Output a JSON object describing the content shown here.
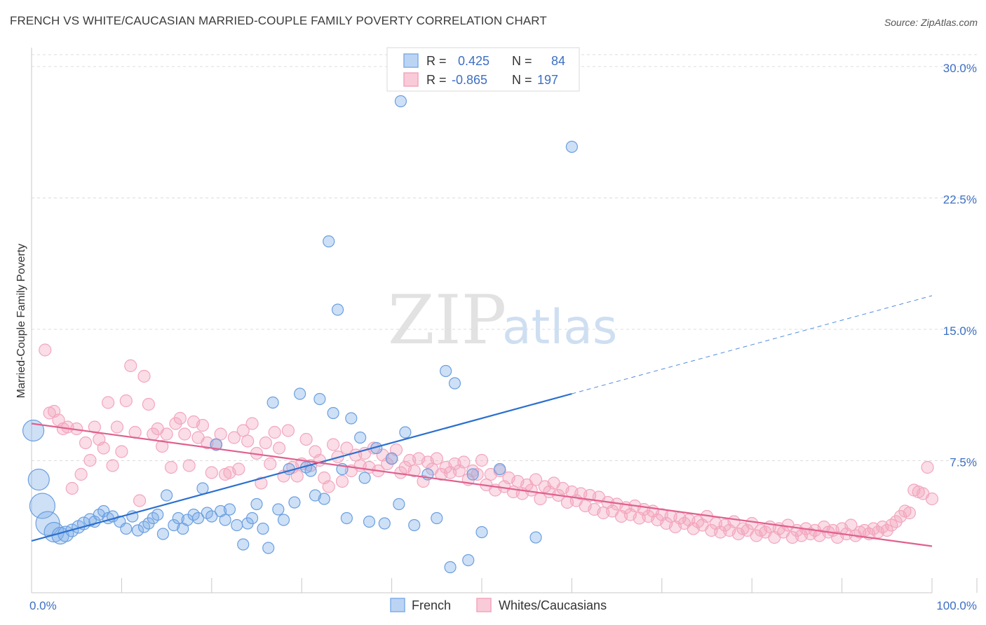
{
  "title": "FRENCH VS WHITE/CAUCASIAN MARRIED-COUPLE FAMILY POVERTY CORRELATION CHART",
  "source": "Source: ZipAtlas.com",
  "watermark": {
    "zip": "ZIP",
    "atlas": "atlas"
  },
  "legend_top": {
    "r_label": "R =",
    "n_label": "N =",
    "rows": [
      {
        "r": "0.425",
        "n": "84"
      },
      {
        "r": "-0.865",
        "n": "197"
      }
    ]
  },
  "chart_data": {
    "type": "scatter",
    "title": "FRENCH VS WHITE/CAUCASIAN MARRIED-COUPLE FAMILY POVERTY CORRELATION CHART",
    "xlabel": "",
    "ylabel": "Married-Couple Family Poverty",
    "xlim": [
      0,
      100
    ],
    "ylim": [
      0,
      30
    ],
    "x_tick_labels": [
      "0.0%",
      "100.0%"
    ],
    "y_ticks": [
      7.5,
      15.0,
      22.5,
      30.0
    ],
    "y_tick_labels": [
      "7.5%",
      "15.0%",
      "22.5%",
      "30.0%"
    ],
    "grid": true,
    "legend_position": "bottom",
    "series": [
      {
        "name": "French",
        "color": "#7eaee8",
        "line_color": "#2a6fd0",
        "r": 0.425,
        "n": 84,
        "trend": {
          "x0": 0,
          "y0": 3.0,
          "x1": 60,
          "y1": 11.4,
          "x_dash_end": 100,
          "y_dash_end": 17.0
        },
        "points": [
          [
            0.2,
            9.3,
            15
          ],
          [
            0.8,
            6.5,
            15
          ],
          [
            1.2,
            5.0,
            18
          ],
          [
            1.8,
            4.0,
            17
          ],
          [
            2.5,
            3.5,
            14
          ],
          [
            3.2,
            3.3,
            12
          ],
          [
            3.8,
            3.4,
            11
          ],
          [
            4.5,
            3.6,
            9
          ],
          [
            5.2,
            3.8,
            9
          ],
          [
            5.8,
            4.0,
            9
          ],
          [
            6.5,
            4.2,
            9
          ],
          [
            7.0,
            4.1,
            8
          ],
          [
            7.5,
            4.5,
            8
          ],
          [
            8.0,
            4.7,
            8
          ],
          [
            8.5,
            4.3,
            8
          ],
          [
            9.0,
            4.4,
            8
          ],
          [
            9.8,
            4.1,
            8
          ],
          [
            10.5,
            3.7,
            8
          ],
          [
            11.2,
            4.4,
            8
          ],
          [
            11.8,
            3.6,
            8
          ],
          [
            12.5,
            3.8,
            8
          ],
          [
            13.0,
            4.0,
            8
          ],
          [
            13.5,
            4.3,
            8
          ],
          [
            14.0,
            4.5,
            8
          ],
          [
            14.6,
            3.4,
            8
          ],
          [
            15.0,
            5.6,
            8
          ],
          [
            15.8,
            3.9,
            8
          ],
          [
            16.3,
            4.3,
            8
          ],
          [
            16.8,
            3.7,
            8
          ],
          [
            17.3,
            4.2,
            8
          ],
          [
            18.0,
            4.5,
            8
          ],
          [
            18.5,
            4.3,
            8
          ],
          [
            19.0,
            6.0,
            8
          ],
          [
            19.5,
            4.6,
            8
          ],
          [
            20.0,
            4.4,
            8
          ],
          [
            20.5,
            8.5,
            8
          ],
          [
            21.0,
            4.7,
            8
          ],
          [
            21.5,
            4.2,
            8
          ],
          [
            22.0,
            4.8,
            8
          ],
          [
            22.8,
            3.9,
            8
          ],
          [
            23.5,
            2.8,
            8
          ],
          [
            24.0,
            4.0,
            8
          ],
          [
            24.5,
            4.3,
            8
          ],
          [
            25.0,
            5.1,
            8
          ],
          [
            25.7,
            3.7,
            8
          ],
          [
            26.3,
            2.6,
            8
          ],
          [
            26.8,
            10.9,
            8
          ],
          [
            27.4,
            4.8,
            8
          ],
          [
            28.0,
            4.2,
            8
          ],
          [
            28.6,
            7.1,
            8
          ],
          [
            29.2,
            5.2,
            8
          ],
          [
            29.8,
            11.4,
            8
          ],
          [
            30.5,
            7.2,
            8
          ],
          [
            31.0,
            7.0,
            8
          ],
          [
            31.5,
            5.6,
            8
          ],
          [
            32.0,
            11.1,
            8
          ],
          [
            32.5,
            5.4,
            8
          ],
          [
            33.0,
            20.1,
            8
          ],
          [
            33.5,
            10.3,
            8
          ],
          [
            34.0,
            16.2,
            8
          ],
          [
            34.5,
            7.1,
            8
          ],
          [
            35.0,
            4.3,
            8
          ],
          [
            35.5,
            10.0,
            8
          ],
          [
            36.5,
            8.9,
            8
          ],
          [
            37.0,
            6.6,
            8
          ],
          [
            37.5,
            4.1,
            8
          ],
          [
            38.3,
            8.3,
            8
          ],
          [
            39.2,
            4.0,
            8
          ],
          [
            40.0,
            7.7,
            8
          ],
          [
            40.8,
            5.1,
            8
          ],
          [
            41.5,
            9.2,
            8
          ],
          [
            41.0,
            28.1,
            8
          ],
          [
            42.5,
            3.9,
            8
          ],
          [
            44.0,
            6.8,
            8
          ],
          [
            45.0,
            4.3,
            8
          ],
          [
            46.0,
            12.7,
            8
          ],
          [
            46.5,
            1.5,
            8
          ],
          [
            47.0,
            12.0,
            8
          ],
          [
            48.5,
            1.9,
            8
          ],
          [
            49.0,
            6.8,
            8
          ],
          [
            50.0,
            3.5,
            8
          ],
          [
            52.0,
            7.1,
            8
          ],
          [
            56.0,
            3.2,
            8
          ],
          [
            60.0,
            25.5,
            8
          ]
        ]
      },
      {
        "name": "Whites/Caucasians",
        "color": "#f3a5be",
        "line_color": "#e0608e",
        "r": -0.865,
        "n": 197,
        "trend": {
          "x0": 0,
          "y0": 9.7,
          "x1": 100,
          "y1": 2.7
        },
        "points": [
          [
            1.5,
            13.9
          ],
          [
            2.0,
            10.3
          ],
          [
            2.5,
            10.4
          ],
          [
            3.0,
            9.9
          ],
          [
            3.5,
            9.4
          ],
          [
            4.0,
            9.5
          ],
          [
            4.5,
            6.0
          ],
          [
            5.0,
            9.4
          ],
          [
            5.5,
            6.8
          ],
          [
            6.0,
            8.6
          ],
          [
            6.5,
            7.6
          ],
          [
            7.0,
            9.5
          ],
          [
            7.5,
            8.8
          ],
          [
            8.0,
            8.3
          ],
          [
            8.5,
            10.9
          ],
          [
            9.0,
            7.3
          ],
          [
            9.5,
            9.5
          ],
          [
            10.0,
            8.1
          ],
          [
            10.5,
            11.0
          ],
          [
            11.0,
            13.0
          ],
          [
            11.5,
            9.2
          ],
          [
            12.0,
            5.3
          ],
          [
            12.5,
            12.4
          ],
          [
            13.0,
            10.8
          ],
          [
            13.5,
            9.1
          ],
          [
            14.0,
            9.4
          ],
          [
            14.5,
            8.4
          ],
          [
            15.0,
            9.1
          ],
          [
            15.5,
            7.2
          ],
          [
            16.0,
            9.7
          ],
          [
            16.5,
            10.0
          ],
          [
            17.0,
            9.1
          ],
          [
            17.5,
            7.3
          ],
          [
            18.0,
            9.8
          ],
          [
            18.5,
            8.9
          ],
          [
            19.0,
            9.6
          ],
          [
            19.5,
            8.6
          ],
          [
            20.0,
            6.9
          ],
          [
            20.5,
            8.5
          ],
          [
            21.0,
            9.1
          ],
          [
            21.5,
            6.8
          ],
          [
            22.0,
            6.9
          ],
          [
            22.5,
            8.9
          ],
          [
            23.0,
            7.1
          ],
          [
            23.5,
            9.3
          ],
          [
            24.0,
            8.7
          ],
          [
            24.5,
            9.7
          ],
          [
            25.0,
            8.0
          ],
          [
            25.5,
            6.3
          ],
          [
            26.0,
            8.6
          ],
          [
            26.5,
            7.4
          ],
          [
            27.0,
            9.2
          ],
          [
            27.5,
            8.3
          ],
          [
            28.0,
            6.7
          ],
          [
            28.5,
            9.3
          ],
          [
            29.0,
            7.2
          ],
          [
            29.5,
            6.7
          ],
          [
            30.0,
            7.4
          ],
          [
            30.5,
            8.8
          ],
          [
            31.0,
            7.3
          ],
          [
            31.5,
            8.1
          ],
          [
            32.0,
            7.6
          ],
          [
            32.5,
            6.6
          ],
          [
            33.0,
            6.1
          ],
          [
            33.5,
            8.5
          ],
          [
            34.0,
            7.8
          ],
          [
            34.5,
            6.4
          ],
          [
            35.0,
            8.3
          ],
          [
            35.5,
            7.0
          ],
          [
            36.0,
            7.9
          ],
          [
            36.5,
            7.3
          ],
          [
            37.0,
            8.0
          ],
          [
            37.5,
            7.2
          ],
          [
            38.0,
            8.3
          ],
          [
            38.5,
            7.0
          ],
          [
            39.0,
            7.9
          ],
          [
            39.5,
            7.4
          ],
          [
            40.0,
            7.7
          ],
          [
            40.5,
            8.2
          ],
          [
            41.0,
            6.9
          ],
          [
            41.5,
            7.2
          ],
          [
            42.0,
            7.6
          ],
          [
            42.5,
            7.0
          ],
          [
            43.0,
            7.7
          ],
          [
            43.5,
            6.4
          ],
          [
            44.0,
            7.5
          ],
          [
            44.5,
            7.1
          ],
          [
            45.0,
            7.7
          ],
          [
            45.5,
            6.8
          ],
          [
            46.0,
            7.2
          ],
          [
            46.5,
            6.9
          ],
          [
            47.0,
            7.4
          ],
          [
            47.5,
            7.0
          ],
          [
            48.0,
            7.5
          ],
          [
            48.5,
            6.5
          ],
          [
            49.0,
            7.0
          ],
          [
            49.5,
            6.8
          ],
          [
            50.0,
            7.6
          ],
          [
            50.5,
            6.2
          ],
          [
            51.0,
            6.8
          ],
          [
            51.5,
            5.9
          ],
          [
            52.0,
            7.0
          ],
          [
            52.5,
            6.1
          ],
          [
            53.0,
            6.6
          ],
          [
            53.5,
            5.8
          ],
          [
            54.0,
            6.4
          ],
          [
            54.5,
            5.7
          ],
          [
            55.0,
            6.2
          ],
          [
            55.5,
            5.9
          ],
          [
            56.0,
            6.5
          ],
          [
            56.5,
            5.4
          ],
          [
            57.0,
            6.1
          ],
          [
            57.5,
            5.8
          ],
          [
            58.0,
            6.3
          ],
          [
            58.5,
            5.6
          ],
          [
            59.0,
            6.0
          ],
          [
            59.5,
            5.2
          ],
          [
            60.0,
            5.8
          ],
          [
            60.5,
            5.3
          ],
          [
            61.0,
            5.7
          ],
          [
            61.5,
            5.0
          ],
          [
            62.0,
            5.6
          ],
          [
            62.5,
            4.8
          ],
          [
            63.0,
            5.5
          ],
          [
            63.5,
            4.6
          ],
          [
            64.0,
            5.2
          ],
          [
            64.5,
            4.7
          ],
          [
            65.0,
            5.1
          ],
          [
            65.5,
            4.4
          ],
          [
            66.0,
            4.9
          ],
          [
            66.5,
            4.5
          ],
          [
            67.0,
            5.0
          ],
          [
            67.5,
            4.3
          ],
          [
            68.0,
            4.8
          ],
          [
            68.5,
            4.4
          ],
          [
            69.0,
            4.7
          ],
          [
            69.5,
            4.2
          ],
          [
            70.0,
            4.5
          ],
          [
            70.5,
            4.0
          ],
          [
            71.0,
            4.4
          ],
          [
            71.5,
            3.8
          ],
          [
            72.0,
            4.3
          ],
          [
            72.5,
            4.0
          ],
          [
            73.0,
            4.2
          ],
          [
            73.5,
            3.7
          ],
          [
            74.0,
            4.1
          ],
          [
            74.5,
            3.9
          ],
          [
            75.0,
            4.4
          ],
          [
            75.5,
            3.6
          ],
          [
            76.0,
            4.0
          ],
          [
            76.5,
            3.5
          ],
          [
            77.0,
            3.9
          ],
          [
            77.5,
            3.6
          ],
          [
            78.0,
            4.1
          ],
          [
            78.5,
            3.4
          ],
          [
            79.0,
            3.7
          ],
          [
            79.5,
            3.6
          ],
          [
            80.0,
            4.0
          ],
          [
            80.5,
            3.3
          ],
          [
            81.0,
            3.6
          ],
          [
            81.5,
            3.5
          ],
          [
            82.0,
            3.8
          ],
          [
            82.5,
            3.2
          ],
          [
            83.0,
            3.7
          ],
          [
            83.5,
            3.5
          ],
          [
            84.0,
            3.9
          ],
          [
            84.5,
            3.2
          ],
          [
            85.0,
            3.6
          ],
          [
            85.5,
            3.3
          ],
          [
            86.0,
            3.7
          ],
          [
            86.5,
            3.4
          ],
          [
            87.0,
            3.6
          ],
          [
            87.5,
            3.3
          ],
          [
            88.0,
            3.8
          ],
          [
            88.5,
            3.5
          ],
          [
            89.0,
            3.6
          ],
          [
            89.5,
            3.2
          ],
          [
            90.0,
            3.7
          ],
          [
            90.5,
            3.4
          ],
          [
            91.0,
            3.9
          ],
          [
            91.5,
            3.3
          ],
          [
            92.0,
            3.5
          ],
          [
            92.5,
            3.6
          ],
          [
            93.0,
            3.4
          ],
          [
            93.5,
            3.7
          ],
          [
            94.0,
            3.5
          ],
          [
            94.5,
            3.8
          ],
          [
            95.0,
            3.6
          ],
          [
            95.5,
            3.9
          ],
          [
            96.0,
            4.1
          ],
          [
            96.5,
            4.4
          ],
          [
            97.0,
            4.7
          ],
          [
            97.5,
            4.6
          ],
          [
            98.0,
            5.9
          ],
          [
            98.5,
            5.8
          ],
          [
            99.0,
            5.7
          ],
          [
            99.5,
            7.2
          ],
          [
            100.0,
            5.4
          ]
        ]
      }
    ]
  }
}
